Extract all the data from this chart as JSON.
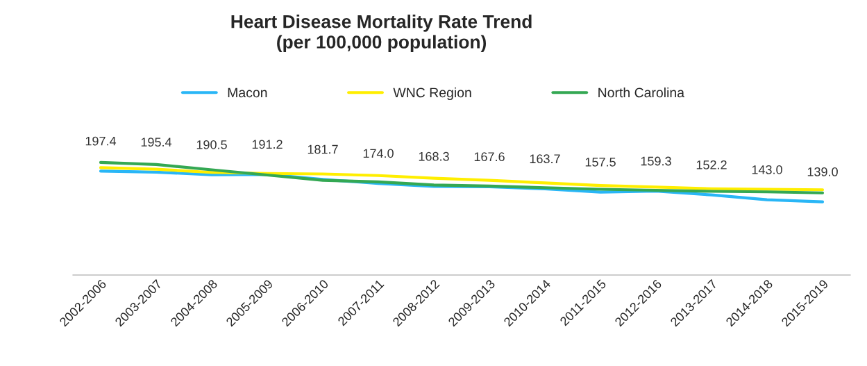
{
  "chart_data": {
    "type": "line",
    "title": "Heart Disease Mortality Rate Trend\n(per 100,000 population)",
    "categories": [
      "2002-2006",
      "2003-2007",
      "2004-2008",
      "2005-2009",
      "2006-2010",
      "2007-2011",
      "2008-2012",
      "2009-2013",
      "2010-2014",
      "2011-2015",
      "2012-2016",
      "2013-2017",
      "2014-2018",
      "2015-2019"
    ],
    "series": [
      {
        "name": "Macon",
        "color": "#29b6f6",
        "values": [
          197.4,
          195.4,
          190.5,
          191.2,
          181.7,
          174.0,
          168.3,
          167.6,
          163.7,
          157.5,
          159.3,
          152.2,
          143.0,
          139.0
        ],
        "value_labels": [
          "197.4",
          "195.4",
          "190.5",
          "191.2",
          "181.7",
          "174.0",
          "168.3",
          "167.6",
          "163.7",
          "157.5",
          "159.3",
          "152.2",
          "143.0",
          "139.0"
        ]
      },
      {
        "name": "WNC Region",
        "color": "#ffee00",
        "values": [
          204,
          201,
          195,
          193,
          192,
          189,
          184,
          180,
          175,
          170,
          167,
          164,
          163,
          162
        ]
      },
      {
        "name": "North Carolina",
        "color": "#34a853",
        "values": [
          214,
          210,
          200,
          190,
          180,
          177,
          171,
          169,
          166,
          163,
          161,
          159,
          158,
          156
        ]
      }
    ],
    "tick_labels": "x",
    "grid": false,
    "legend": "top",
    "marker": "none",
    "line_style": "solid"
  }
}
